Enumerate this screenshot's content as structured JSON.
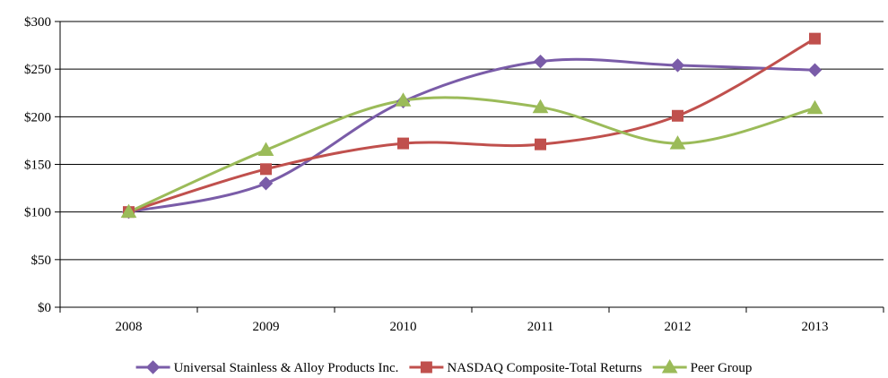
{
  "chart_data": {
    "type": "line",
    "title": "",
    "xlabel": "",
    "ylabel": "",
    "categories": [
      "2008",
      "2009",
      "2010",
      "2011",
      "2012",
      "2013"
    ],
    "ylim": [
      0,
      300
    ],
    "y_ticks": [
      0,
      50,
      100,
      150,
      200,
      250,
      300
    ],
    "y_tick_labels": [
      "$0",
      "$50",
      "$100",
      "$150",
      "$200",
      "$250",
      "$300"
    ],
    "grid": "horizontal",
    "legend_position": "bottom",
    "smooth_lines": true,
    "series": [
      {
        "name": "Universal Stainless & Alloy Products Inc.",
        "color": "#7a5ca8",
        "marker": "diamond",
        "values": [
          100,
          130,
          216,
          258,
          254,
          249
        ]
      },
      {
        "name": "NASDAQ Composite-Total Returns",
        "color": "#c0504d",
        "marker": "square",
        "values": [
          100,
          145,
          172,
          171,
          201,
          282
        ]
      },
      {
        "name": "Peer Group",
        "color": "#9bbb59",
        "marker": "triangle",
        "values": [
          100,
          165,
          217,
          210,
          172,
          209
        ]
      }
    ]
  }
}
